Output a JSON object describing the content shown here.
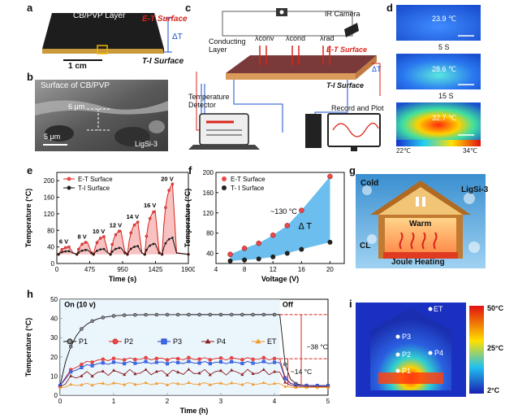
{
  "panel_labels": {
    "a": "a",
    "b": "b",
    "c": "c",
    "d": "d",
    "e": "e",
    "f": "f",
    "g": "g",
    "h": "h",
    "i": "i"
  },
  "panel_a": {
    "layer": "CB/PVP Layer",
    "et": "E-T Surface",
    "ti": "T-I Surface",
    "dt": "ΔT",
    "scale": "1 cm"
  },
  "panel_b": {
    "title": "Surface of CB/PVP",
    "thickness": "6 μm",
    "scale": "5 μm",
    "sample": "LigSi-3"
  },
  "panel_c": {
    "ir": "IR Camera",
    "conducting": "Conducting Layer",
    "conv": "λconv",
    "cond": "λcond",
    "rad": "λrad",
    "et": "E-T Surface",
    "ti": "T-I Surface",
    "dt": "ΔT",
    "detector": "Temperature Detector",
    "record": "Record and Plot"
  },
  "panel_d": {
    "t1": "23.9 ℃",
    "s1": "5 S",
    "t2": "28.6 ℃",
    "s2": "15 S",
    "t3": "32.7 ℃",
    "cmin": "22℃",
    "cmax": "34℃"
  },
  "panel_g": {
    "cold": "Cold",
    "warm": "Warm",
    "ligsi": "LigSi-3",
    "cl": "CL",
    "joule": "Joule Heating"
  },
  "panel_i": {
    "et": "ET",
    "p1": "P1",
    "p2": "P2",
    "p3": "P3",
    "p4": "P4",
    "c50": "50°C",
    "c25": "25°C",
    "c2": "2°C"
  },
  "chart_data": [
    {
      "id": "e",
      "type": "line",
      "xlabel": "Time (s)",
      "ylabel": "Temperature (°C)",
      "xlim": [
        0,
        1900
      ],
      "ylim": [
        0,
        220
      ],
      "xticks": [
        0,
        475,
        950,
        1425,
        1900
      ],
      "yticks": [
        0,
        40,
        80,
        120,
        160,
        200
      ],
      "legend": [
        "E-T Surface",
        "T-I Surface"
      ],
      "voltages": [
        "6 V",
        "8 V",
        "10 V",
        "12 V",
        "14 V",
        "16 V",
        "20 V"
      ],
      "pulses": [
        {
          "t_on": 25,
          "et_peak": 40,
          "ti_peak": 30
        },
        {
          "t_on": 290,
          "et_peak": 52,
          "ti_peak": 33
        },
        {
          "t_on": 530,
          "et_peak": 65,
          "ti_peak": 35
        },
        {
          "t_on": 775,
          "et_peak": 80,
          "ti_peak": 38
        },
        {
          "t_on": 1020,
          "et_peak": 100,
          "ti_peak": 42
        },
        {
          "t_on": 1270,
          "et_peak": 128,
          "ti_peak": 48
        },
        {
          "t_on": 1520,
          "et_peak": 192,
          "ti_peak": 62
        }
      ],
      "pulse_width": 150,
      "baseline": 22
    },
    {
      "id": "f",
      "type": "scatter",
      "xlabel": "Voltage (V)",
      "ylabel": "Temperature (°C)",
      "xlim": [
        4,
        22
      ],
      "ylim": [
        20,
        200
      ],
      "xticks": [
        4,
        8,
        12,
        16,
        20
      ],
      "yticks": [
        40,
        80,
        120,
        160,
        200
      ],
      "legend": [
        "E-T Surface",
        "T- I Surface"
      ],
      "x": [
        6,
        8,
        10,
        12,
        14,
        16,
        20
      ],
      "series": [
        {
          "name": "E-T Surface",
          "values": [
            38,
            50,
            60,
            76,
            95,
            125,
            192
          ]
        },
        {
          "name": "T- I Surface",
          "values": [
            25,
            27,
            29,
            33,
            40,
            48,
            62
          ]
        }
      ],
      "annotations": [
        "~130 °C",
        "Δ T"
      ]
    },
    {
      "id": "h",
      "type": "line",
      "xlabel": "Time (h)",
      "ylabel": "Temperature (°C)",
      "xlim": [
        0,
        5
      ],
      "ylim": [
        0,
        50
      ],
      "xticks": [
        0,
        1,
        2,
        3,
        4,
        5
      ],
      "yticks": [
        0,
        10,
        20,
        30,
        40,
        50
      ],
      "legend": [
        "P1",
        "P2",
        "P3",
        "P4",
        "ET"
      ],
      "on_label": "On (10 v)",
      "off_label": "Off",
      "annotations": [
        "~38 °C",
        "~14 °C"
      ],
      "off_time": 4.1,
      "series": [
        {
          "name": "P1",
          "plateau": 42,
          "final": 5
        },
        {
          "name": "P2",
          "plateau": 19,
          "final": 5
        },
        {
          "name": "P3",
          "plateau": 17,
          "final": 5
        },
        {
          "name": "P4",
          "plateau": 12,
          "final": 4.5
        },
        {
          "name": "ET",
          "plateau": 6,
          "final": 4
        }
      ]
    }
  ]
}
